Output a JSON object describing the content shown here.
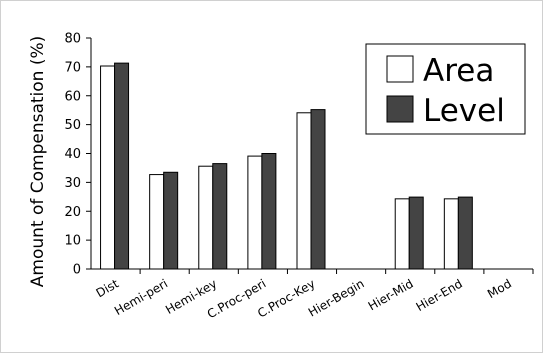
{
  "chart_data": {
    "type": "bar",
    "categories": [
      "Dist",
      "Hemi-peri",
      "Hemi-key",
      "C.Proc-peri",
      "C.Proc-Key",
      "Hier-Begin",
      "Hier-Mid",
      "Hier-End",
      "Mod"
    ],
    "series": [
      {
        "name": "Area",
        "color": "#ffffff",
        "values": [
          70.3,
          32.7,
          35.6,
          39.1,
          54.1,
          null,
          24.3,
          24.3,
          null
        ]
      },
      {
        "name": "Level",
        "color": "#444444",
        "values": [
          71.3,
          33.5,
          36.5,
          40.0,
          55.2,
          null,
          24.9,
          24.9,
          null
        ]
      }
    ],
    "title": "",
    "xlabel": "",
    "ylabel": "Amount of Compensation (%)",
    "ylim": [
      0,
      80
    ],
    "yticks": [
      0,
      10,
      20,
      30,
      40,
      50,
      60,
      70,
      80
    ],
    "grid": false,
    "legend_position": "top-right"
  }
}
